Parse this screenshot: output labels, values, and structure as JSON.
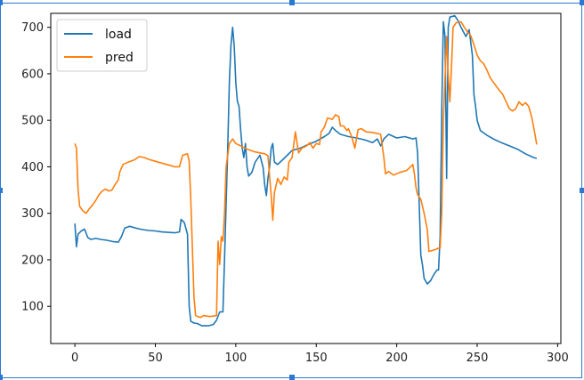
{
  "chart_data": {
    "type": "line",
    "title": "",
    "xlabel": "",
    "ylabel": "",
    "xlim": [
      -15,
      302
    ],
    "ylim": [
      20,
      730
    ],
    "xticks": [
      0,
      50,
      100,
      150,
      200,
      250,
      300
    ],
    "yticks": [
      100,
      200,
      300,
      400,
      500,
      600,
      700
    ],
    "grid": false,
    "legend_position": "top-left",
    "series": [
      {
        "name": "load",
        "color": "#1f77b4",
        "points": [
          [
            0,
            278
          ],
          [
            1,
            228
          ],
          [
            2,
            255
          ],
          [
            4,
            262
          ],
          [
            6,
            266
          ],
          [
            8,
            248
          ],
          [
            10,
            244
          ],
          [
            13,
            246
          ],
          [
            16,
            244
          ],
          [
            20,
            242
          ],
          [
            24,
            239
          ],
          [
            27,
            238
          ],
          [
            29,
            250
          ],
          [
            31,
            268
          ],
          [
            34,
            272
          ],
          [
            38,
            268
          ],
          [
            42,
            265
          ],
          [
            46,
            263
          ],
          [
            50,
            262
          ],
          [
            54,
            260
          ],
          [
            58,
            259
          ],
          [
            62,
            258
          ],
          [
            65,
            260
          ],
          [
            66,
            287
          ],
          [
            68,
            280
          ],
          [
            70,
            255
          ],
          [
            71,
            100
          ],
          [
            72,
            68
          ],
          [
            74,
            64
          ],
          [
            76,
            63
          ],
          [
            79,
            58
          ],
          [
            83,
            58
          ],
          [
            86,
            61
          ],
          [
            88,
            70
          ],
          [
            90,
            88
          ],
          [
            92,
            88
          ],
          [
            93,
            200
          ],
          [
            95,
            440
          ],
          [
            96,
            580
          ],
          [
            97,
            660
          ],
          [
            98,
            700
          ],
          [
            99,
            660
          ],
          [
            100,
            580
          ],
          [
            101,
            540
          ],
          [
            102,
            530
          ],
          [
            103,
            480
          ],
          [
            104,
            440
          ],
          [
            105,
            420
          ],
          [
            106,
            450
          ],
          [
            107,
            400
          ],
          [
            108,
            380
          ],
          [
            110,
            388
          ],
          [
            112,
            410
          ],
          [
            115,
            425
          ],
          [
            117,
            398
          ],
          [
            118,
            360
          ],
          [
            119,
            338
          ],
          [
            120,
            375
          ],
          [
            121,
            400
          ],
          [
            122,
            440
          ],
          [
            123,
            450
          ],
          [
            124,
            410
          ],
          [
            126,
            405
          ],
          [
            130,
            418
          ],
          [
            135,
            435
          ],
          [
            140,
            440
          ],
          [
            145,
            448
          ],
          [
            150,
            455
          ],
          [
            155,
            465
          ],
          [
            158,
            472
          ],
          [
            160,
            485
          ],
          [
            162,
            478
          ],
          [
            165,
            470
          ],
          [
            170,
            465
          ],
          [
            175,
            462
          ],
          [
            180,
            458
          ],
          [
            185,
            452
          ],
          [
            188,
            460
          ],
          [
            190,
            445
          ],
          [
            192,
            460
          ],
          [
            195,
            470
          ],
          [
            200,
            462
          ],
          [
            205,
            465
          ],
          [
            210,
            460
          ],
          [
            212,
            462
          ],
          [
            213,
            430
          ],
          [
            214,
            320
          ],
          [
            215,
            210
          ],
          [
            216,
            190
          ],
          [
            217,
            160
          ],
          [
            219,
            148
          ],
          [
            221,
            155
          ],
          [
            223,
            168
          ],
          [
            225,
            178
          ],
          [
            226,
            178
          ],
          [
            227,
            250
          ],
          [
            228,
            520
          ],
          [
            229,
            712
          ],
          [
            230,
            680
          ],
          [
            231,
            375
          ],
          [
            232,
            700
          ],
          [
            233,
            722
          ],
          [
            236,
            725
          ],
          [
            238,
            715
          ],
          [
            240,
            700
          ],
          [
            243,
            680
          ],
          [
            245,
            695
          ],
          [
            247,
            640
          ],
          [
            248,
            555
          ],
          [
            249,
            530
          ],
          [
            250,
            500
          ],
          [
            252,
            478
          ],
          [
            256,
            468
          ],
          [
            260,
            460
          ],
          [
            265,
            452
          ],
          [
            270,
            445
          ],
          [
            275,
            438
          ],
          [
            280,
            428
          ],
          [
            285,
            420
          ],
          [
            287,
            418
          ]
        ]
      },
      {
        "name": "pred",
        "color": "#ff7f0e",
        "points": [
          [
            0,
            450
          ],
          [
            1,
            440
          ],
          [
            2,
            350
          ],
          [
            3,
            315
          ],
          [
            5,
            305
          ],
          [
            7,
            300
          ],
          [
            9,
            310
          ],
          [
            11,
            318
          ],
          [
            13,
            328
          ],
          [
            15,
            340
          ],
          [
            17,
            348
          ],
          [
            19,
            352
          ],
          [
            21,
            348
          ],
          [
            23,
            350
          ],
          [
            25,
            362
          ],
          [
            27,
            372
          ],
          [
            28,
            390
          ],
          [
            30,
            405
          ],
          [
            33,
            410
          ],
          [
            37,
            415
          ],
          [
            40,
            422
          ],
          [
            43,
            420
          ],
          [
            46,
            416
          ],
          [
            50,
            412
          ],
          [
            54,
            408
          ],
          [
            58,
            404
          ],
          [
            62,
            400
          ],
          [
            65,
            400
          ],
          [
            67,
            425
          ],
          [
            70,
            428
          ],
          [
            71,
            412
          ],
          [
            72,
            330
          ],
          [
            73,
            225
          ],
          [
            74,
            120
          ],
          [
            75,
            80
          ],
          [
            78,
            76
          ],
          [
            80,
            80
          ],
          [
            84,
            78
          ],
          [
            88,
            80
          ],
          [
            89,
            240
          ],
          [
            90,
            190
          ],
          [
            91,
            250
          ],
          [
            92,
            240
          ],
          [
            93,
            300
          ],
          [
            94,
            400
          ],
          [
            96,
            450
          ],
          [
            98,
            460
          ],
          [
            100,
            450
          ],
          [
            103,
            445
          ],
          [
            107,
            438
          ],
          [
            112,
            432
          ],
          [
            115,
            430
          ],
          [
            118,
            428
          ],
          [
            120,
            424
          ],
          [
            121,
            380
          ],
          [
            122,
            340
          ],
          [
            123,
            285
          ],
          [
            124,
            345
          ],
          [
            126,
            375
          ],
          [
            128,
            362
          ],
          [
            130,
            378
          ],
          [
            132,
            372
          ],
          [
            133,
            410
          ],
          [
            135,
            420
          ],
          [
            137,
            475
          ],
          [
            139,
            430
          ],
          [
            141,
            440
          ],
          [
            144,
            445
          ],
          [
            146,
            452
          ],
          [
            148,
            440
          ],
          [
            150,
            450
          ],
          [
            152,
            448
          ],
          [
            153,
            475
          ],
          [
            155,
            485
          ],
          [
            157,
            505
          ],
          [
            160,
            502
          ],
          [
            162,
            512
          ],
          [
            164,
            508
          ],
          [
            165,
            488
          ],
          [
            167,
            488
          ],
          [
            169,
            478
          ],
          [
            170,
            482
          ],
          [
            172,
            465
          ],
          [
            174,
            440
          ],
          [
            176,
            480
          ],
          [
            178,
            482
          ],
          [
            181,
            475
          ],
          [
            185,
            474
          ],
          [
            190,
            470
          ],
          [
            192,
            420
          ],
          [
            193,
            385
          ],
          [
            195,
            390
          ],
          [
            198,
            382
          ],
          [
            202,
            388
          ],
          [
            206,
            392
          ],
          [
            208,
            398
          ],
          [
            210,
            405
          ],
          [
            211,
            385
          ],
          [
            212,
            355
          ],
          [
            213,
            340
          ],
          [
            215,
            330
          ],
          [
            217,
            300
          ],
          [
            219,
            265
          ],
          [
            220,
            218
          ],
          [
            222,
            220
          ],
          [
            224,
            222
          ],
          [
            226,
            225
          ],
          [
            227,
            225
          ],
          [
            228,
            300
          ],
          [
            229,
            500
          ],
          [
            230,
            590
          ],
          [
            231,
            680
          ],
          [
            232,
            600
          ],
          [
            233,
            540
          ],
          [
            234,
            612
          ],
          [
            235,
            700
          ],
          [
            237,
            710
          ],
          [
            240,
            712
          ],
          [
            242,
            700
          ],
          [
            244,
            690
          ],
          [
            246,
            682
          ],
          [
            248,
            662
          ],
          [
            250,
            640
          ],
          [
            252,
            628
          ],
          [
            254,
            622
          ],
          [
            256,
            608
          ],
          [
            258,
            592
          ],
          [
            260,
            582
          ],
          [
            263,
            568
          ],
          [
            266,
            555
          ],
          [
            268,
            540
          ],
          [
            270,
            525
          ],
          [
            272,
            520
          ],
          [
            274,
            525
          ],
          [
            276,
            540
          ],
          [
            278,
            532
          ],
          [
            280,
            538
          ],
          [
            282,
            530
          ],
          [
            284,
            505
          ],
          [
            286,
            468
          ],
          [
            287,
            448
          ]
        ]
      }
    ]
  }
}
